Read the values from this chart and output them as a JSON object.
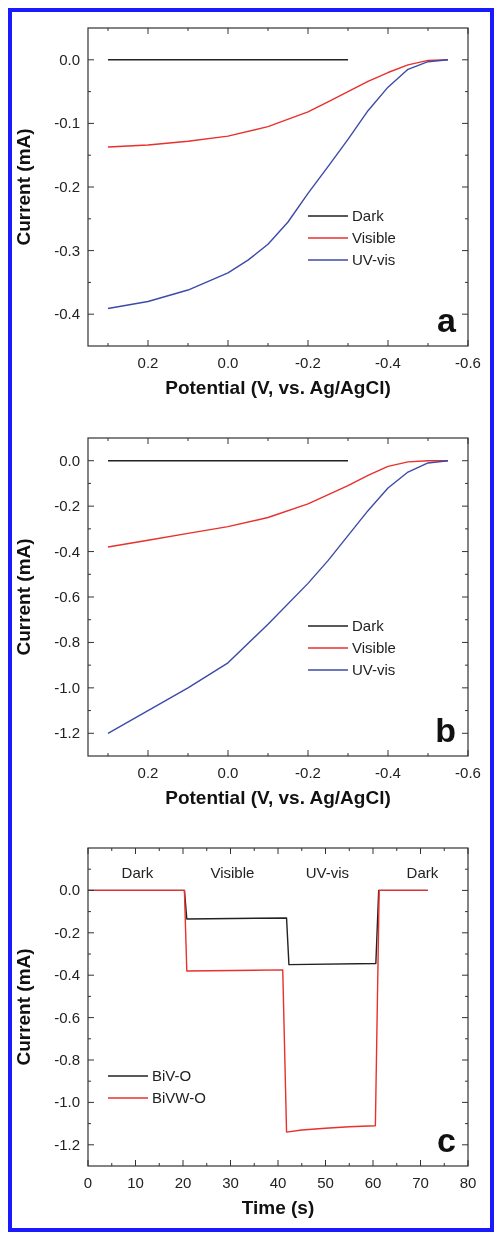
{
  "chart_data": [
    {
      "type": "line",
      "xlabel": "Potential (V, vs. Ag/AgCl)",
      "ylabel": "Current (mA)",
      "xlim": [
        0.35,
        -0.6
      ],
      "ylim": [
        -0.45,
        0.05
      ],
      "xticks": [
        0.2,
        {
          "value": 0,
          "label": "0.0"
        },
        -0.2,
        -0.4,
        -0.6,
        {
          "value": 0.3,
          "label": null
        },
        {
          "value": 0.1,
          "label": null
        },
        {
          "value": -0.1,
          "label": null
        },
        {
          "value": -0.3,
          "label": null
        },
        {
          "value": -0.5,
          "label": null
        }
      ],
      "yticks": [
        {
          "value": 0,
          "label": "0.0"
        },
        -0.1,
        -0.2,
        -0.3,
        -0.4,
        {
          "value": -0.05,
          "label": null
        },
        {
          "value": -0.15,
          "label": null
        },
        {
          "value": -0.25,
          "label": null
        },
        {
          "value": -0.35,
          "label": null
        }
      ],
      "legend": "right",
      "annotations": [
        "a"
      ],
      "line_style": "solid",
      "marker": "none",
      "grid": false,
      "series": [
        {
          "name": "Dark",
          "color": "#222222",
          "x": [
            0.3,
            -0.3
          ],
          "values": [
            0,
            0
          ]
        },
        {
          "name": "Visible",
          "color": "#e8302c",
          "x": [
            0.3,
            0.2,
            0.1,
            0,
            -0.1,
            -0.2,
            -0.25,
            -0.3,
            -0.35,
            -0.4,
            -0.45,
            -0.5,
            -0.55
          ],
          "values": [
            -0.137,
            -0.134,
            -0.128,
            -0.12,
            -0.105,
            -0.082,
            -0.066,
            -0.05,
            -0.034,
            -0.02,
            -0.008,
            -0.001,
            0
          ]
        },
        {
          "name": "UV-vis",
          "color": "#3c4aa8",
          "x": [
            0.3,
            0.2,
            0.1,
            0,
            -0.05,
            -0.1,
            -0.15,
            -0.2,
            -0.25,
            -0.3,
            -0.35,
            -0.4,
            -0.45,
            -0.5,
            -0.55
          ],
          "values": [
            -0.391,
            -0.38,
            -0.362,
            -0.335,
            -0.315,
            -0.29,
            -0.255,
            -0.21,
            -0.168,
            -0.125,
            -0.08,
            -0.043,
            -0.015,
            -0.003,
            0
          ]
        }
      ]
    },
    {
      "type": "line",
      "xlabel": "Potential (V, vs. Ag/AgCl)",
      "ylabel": "Current (mA)",
      "xlim": [
        0.35,
        -0.6
      ],
      "ylim": [
        -1.3,
        0.1
      ],
      "xticks": [
        0.2,
        {
          "value": 0,
          "label": "0.0"
        },
        -0.2,
        -0.4,
        -0.6,
        {
          "value": 0.3,
          "label": null
        },
        {
          "value": 0.1,
          "label": null
        },
        {
          "value": -0.1,
          "label": null
        },
        {
          "value": -0.3,
          "label": null
        },
        {
          "value": -0.5,
          "label": null
        }
      ],
      "yticks": [
        {
          "value": 0,
          "label": "0.0"
        },
        -0.2,
        -0.4,
        -0.6,
        -0.8,
        {
          "value": -1,
          "label": "-1.0"
        },
        -1.2,
        {
          "value": -0.1,
          "label": null
        },
        {
          "value": -0.3,
          "label": null
        },
        {
          "value": -0.5,
          "label": null
        },
        {
          "value": -0.7,
          "label": null
        },
        {
          "value": -0.9,
          "label": null
        },
        {
          "value": -1.1,
          "label": null
        }
      ],
      "legend": "right",
      "annotations": [
        "b"
      ],
      "line_style": "solid",
      "marker": "none",
      "grid": false,
      "series": [
        {
          "name": "Dark",
          "color": "#222222",
          "x": [
            0.3,
            -0.3
          ],
          "values": [
            0,
            0
          ]
        },
        {
          "name": "Visible",
          "color": "#e8302c",
          "x": [
            0.3,
            0.2,
            0.1,
            0,
            -0.1,
            -0.2,
            -0.3,
            -0.35,
            -0.4,
            -0.45,
            -0.5,
            -0.55
          ],
          "values": [
            -0.38,
            -0.35,
            -0.32,
            -0.29,
            -0.25,
            -0.19,
            -0.11,
            -0.065,
            -0.025,
            -0.005,
            0,
            0
          ]
        },
        {
          "name": "UV-vis",
          "color": "#3c4aa8",
          "x": [
            0.3,
            0.2,
            0.1,
            0,
            -0.1,
            -0.2,
            -0.25,
            -0.3,
            -0.35,
            -0.4,
            -0.45,
            -0.5,
            -0.55
          ],
          "values": [
            -1.2,
            -1.1,
            -1,
            -0.89,
            -0.72,
            -0.54,
            -0.44,
            -0.33,
            -0.22,
            -0.12,
            -0.05,
            -0.01,
            0
          ]
        }
      ]
    },
    {
      "type": "line",
      "xlabel": "Time (s)",
      "ylabel": "Current (mA)",
      "xlim": [
        0,
        80
      ],
      "ylim": [
        -1.3,
        0.2
      ],
      "xticks": [
        0,
        10,
        20,
        30,
        40,
        50,
        60,
        70,
        80,
        {
          "value": 5,
          "label": null
        },
        {
          "value": 15,
          "label": null
        },
        {
          "value": 25,
          "label": null
        },
        {
          "value": 35,
          "label": null
        },
        {
          "value": 45,
          "label": null
        },
        {
          "value": 55,
          "label": null
        },
        {
          "value": 65,
          "label": null
        },
        {
          "value": 75,
          "label": null
        }
      ],
      "yticks": [
        {
          "value": 0,
          "label": "0.0"
        },
        -0.2,
        -0.4,
        -0.6,
        -0.8,
        {
          "value": -1,
          "label": "-1.0"
        },
        -1.2,
        {
          "value": 0.1,
          "label": null
        },
        {
          "value": -0.1,
          "label": null
        },
        {
          "value": -0.3,
          "label": null
        },
        {
          "value": -0.5,
          "label": null
        },
        {
          "value": -0.7,
          "label": null
        },
        {
          "value": -0.9,
          "label": null
        },
        {
          "value": -1.1,
          "label": null
        }
      ],
      "legend": "bottom left",
      "line_style": "solid",
      "marker": "none",
      "grid": false,
      "annotations": [
        "Dark",
        "Visible",
        "UV-vis",
        "Dark",
        "c"
      ],
      "series": [
        {
          "name": "BiV-O",
          "color": "#222222",
          "x": [
            0,
            20.3,
            20.8,
            41.8,
            42.3,
            60.6,
            61.2,
            71.5
          ],
          "values": [
            0,
            0,
            -0.135,
            -0.13,
            -0.35,
            -0.345,
            0,
            0
          ]
        },
        {
          "name": "BiVW-O",
          "color": "#e8302c",
          "x": [
            0,
            20.3,
            20.8,
            41,
            41.8,
            45,
            50,
            55,
            60.5,
            61.3,
            71.5
          ],
          "values": [
            0,
            0,
            -0.38,
            -0.375,
            -1.14,
            -1.13,
            -1.122,
            -1.115,
            -1.11,
            0,
            0
          ]
        }
      ]
    }
  ]
}
